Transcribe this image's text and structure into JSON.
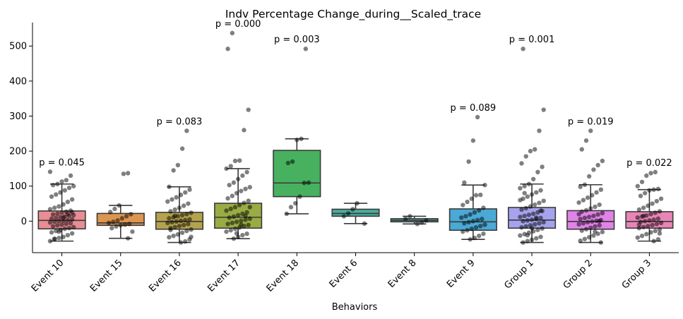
{
  "chart_data": {
    "type": "box",
    "title": "Indv Percentage Change_during__Scaled_trace",
    "xlabel": "Behaviors",
    "ylabel": "",
    "ylim": [
      -90,
      567
    ],
    "yticks": [
      0,
      100,
      200,
      300,
      400,
      500
    ],
    "grid": false,
    "legend": "none",
    "categories": [
      "Event 10",
      "Event 15",
      "Event 16",
      "Event 17",
      "Event 18",
      "Event 6",
      "Event 8",
      "Event 9",
      "Group 1",
      "Group 2",
      "Group 3"
    ],
    "colors": [
      "#e98d94",
      "#dd9650",
      "#b5a24d",
      "#99ac44",
      "#47b15f",
      "#49ae9e",
      "#4aa99f",
      "#4aa9d5",
      "#a6a3ec",
      "#e083e6",
      "#e885b6"
    ],
    "boxes": [
      {
        "q1": -22,
        "median": 2,
        "q3": 29,
        "lo": -57,
        "hi": 106
      },
      {
        "q1": -12,
        "median": -5,
        "q3": 22,
        "lo": -49,
        "hi": 45
      },
      {
        "q1": -23,
        "median": -1,
        "q3": 25,
        "lo": -61,
        "hi": 98
      },
      {
        "q1": -20,
        "median": 11,
        "q3": 51,
        "lo": -50,
        "hi": 150
      },
      {
        "q1": 70,
        "median": 109,
        "q3": 202,
        "lo": 21,
        "hi": 235
      },
      {
        "q1": 14,
        "median": 22,
        "q3": 34,
        "lo": -7,
        "hi": 51
      },
      {
        "q1": -2,
        "median": 2,
        "q3": 7,
        "lo": -8,
        "hi": 14
      },
      {
        "q1": -26,
        "median": -2,
        "q3": 35,
        "lo": -52,
        "hi": 103
      },
      {
        "q1": -20,
        "median": 3,
        "q3": 39,
        "lo": -61,
        "hi": 106
      },
      {
        "q1": -23,
        "median": -1,
        "q3": 30,
        "lo": -61,
        "hi": 104
      },
      {
        "q1": -20,
        "median": -1,
        "q3": 27,
        "lo": -57,
        "hi": 90
      }
    ],
    "points": [
      [
        -57,
        -52,
        -48,
        -45,
        -40,
        -35,
        -32,
        -28,
        -25,
        -22,
        -20,
        -17,
        -15,
        -12,
        -10,
        -8,
        -6,
        -4,
        -2,
        0,
        1,
        3,
        5,
        7,
        9,
        11,
        13,
        15,
        17,
        19,
        21,
        24,
        27,
        30,
        34,
        38,
        42,
        48,
        55,
        62,
        70,
        76,
        82,
        88,
        95,
        100,
        103,
        106,
        113,
        117,
        130,
        141,
        -50,
        -30,
        10,
        20,
        25
      ],
      [
        -49,
        -30,
        -20,
        -15,
        -12,
        -10,
        -8,
        -5,
        -2,
        2,
        8,
        14,
        20,
        26,
        35,
        45,
        135,
        137
      ],
      [
        -61,
        -58,
        -52,
        -46,
        -42,
        -38,
        -33,
        -28,
        -24,
        -20,
        -17,
        -14,
        -11,
        -8,
        -5,
        -3,
        -1,
        1,
        3,
        5,
        8,
        11,
        14,
        17,
        20,
        24,
        28,
        33,
        38,
        44,
        50,
        56,
        62,
        68,
        75,
        82,
        90,
        98,
        145,
        160,
        207,
        258,
        -45,
        -25,
        15
      ],
      [
        -50,
        -45,
        -40,
        -36,
        -30,
        -26,
        -22,
        -18,
        -14,
        -11,
        -8,
        -5,
        -2,
        1,
        4,
        7,
        10,
        13,
        17,
        21,
        25,
        30,
        35,
        40,
        46,
        52,
        58,
        65,
        72,
        80,
        86,
        92,
        97,
        103,
        110,
        120,
        130,
        140,
        150,
        157,
        172,
        173,
        260,
        318,
        492,
        537,
        -35,
        -10,
        15,
        40
      ],
      [
        21,
        40,
        51,
        70,
        109,
        110,
        166,
        170,
        232,
        235,
        492
      ],
      [
        -7,
        14,
        22,
        34,
        51
      ],
      [
        -8,
        -4,
        2,
        7,
        14
      ],
      [
        -52,
        -48,
        -42,
        -36,
        -30,
        -26,
        -22,
        -18,
        -14,
        -10,
        -6,
        -3,
        0,
        3,
        6,
        10,
        14,
        19,
        25,
        31,
        38,
        46,
        55,
        64,
        74,
        75,
        103,
        110,
        170,
        230,
        297
      ],
      [
        -61,
        -57,
        -53,
        -49,
        -45,
        -41,
        -37,
        -33,
        -29,
        -25,
        -21,
        -18,
        -15,
        -12,
        -9,
        -6,
        -3,
        0,
        2,
        4,
        6,
        9,
        12,
        15,
        18,
        21,
        25,
        29,
        33,
        37,
        42,
        47,
        52,
        58,
        64,
        70,
        76,
        82,
        88,
        94,
        100,
        106,
        120,
        140,
        155,
        165,
        185,
        200,
        205,
        258,
        318,
        492,
        -40,
        -20,
        10,
        30,
        60,
        80
      ],
      [
        -61,
        -56,
        -51,
        -46,
        -41,
        -36,
        -31,
        -27,
        -23,
        -19,
        -15,
        -12,
        -9,
        -6,
        -3,
        -1,
        1,
        3,
        6,
        9,
        12,
        15,
        19,
        23,
        27,
        31,
        36,
        41,
        47,
        53,
        60,
        67,
        74,
        82,
        90,
        98,
        104,
        128,
        147,
        160,
        172,
        205,
        230,
        258,
        -30,
        0,
        20
      ],
      [
        -57,
        -52,
        -47,
        -42,
        -37,
        -32,
        -28,
        -24,
        -20,
        -17,
        -14,
        -11,
        -8,
        -5,
        -2,
        0,
        2,
        4,
        7,
        10,
        13,
        16,
        20,
        24,
        28,
        33,
        38,
        44,
        50,
        57,
        64,
        72,
        80,
        88,
        90,
        92,
        100,
        112,
        130,
        137,
        140,
        -35,
        -10,
        15
      ]
    ],
    "annotations": [
      {
        "category": "Event 10",
        "text": "p = 0.045"
      },
      {
        "category": "Event 16",
        "text": "p = 0.083"
      },
      {
        "category": "Event 17",
        "text": "p = 0.000"
      },
      {
        "category": "Event 18",
        "text": "p = 0.003"
      },
      {
        "category": "Event 9",
        "text": "p = 0.089"
      },
      {
        "category": "Group 1",
        "text": "p = 0.001"
      },
      {
        "category": "Group 2",
        "text": "p = 0.019"
      },
      {
        "category": "Group 3",
        "text": "p = 0.022"
      }
    ]
  }
}
